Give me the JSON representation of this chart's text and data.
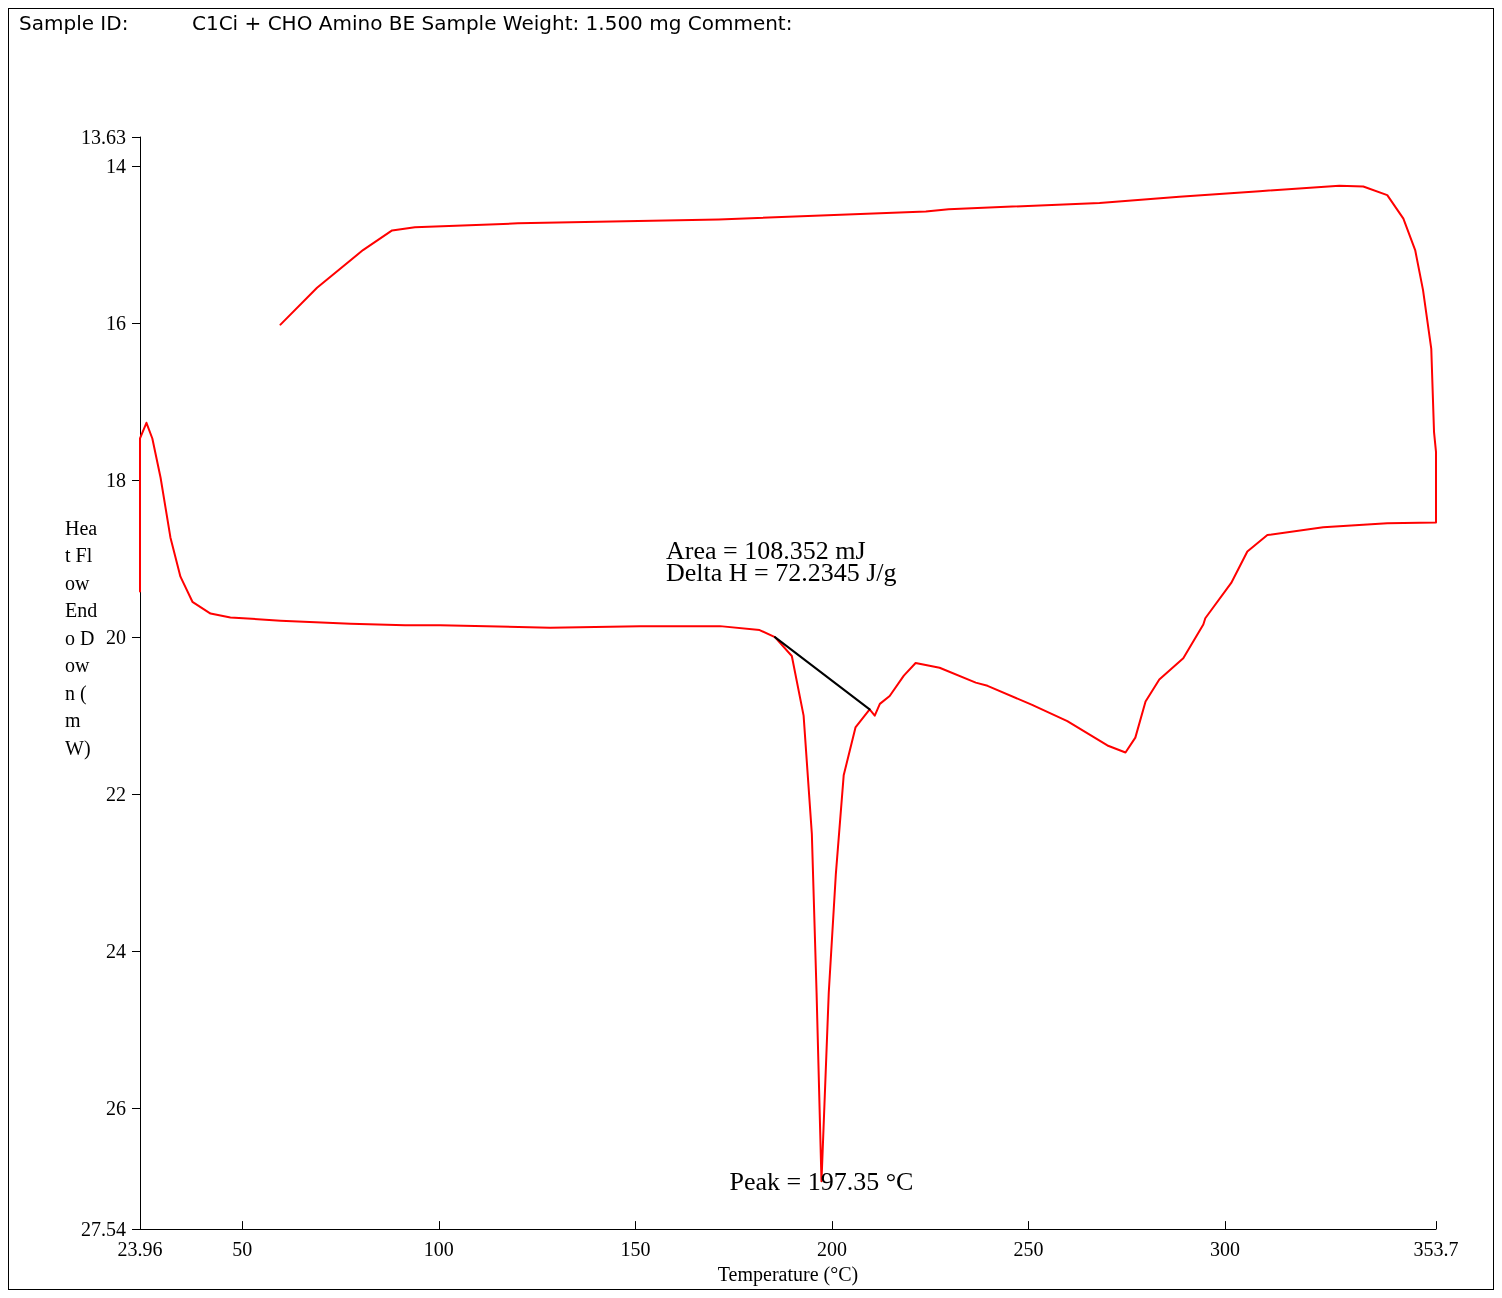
{
  "chart_data": {
    "type": "line",
    "title": "Sample ID:          C1Ci + CHO Amino BE Sample Weight: 1.500 mg Comment:",
    "xlabel": "Temperature (°C)",
    "ylabel": "Heat Flow Endo Down (mW)",
    "xlim": [
      23.96,
      353.7
    ],
    "xticks": [
      23.96,
      50,
      100,
      150,
      200,
      250,
      300,
      353.7
    ],
    "ylim": [
      27.54,
      13.63
    ],
    "yticks": [
      13.63,
      14,
      16,
      18,
      20,
      22,
      24,
      26,
      27.54
    ],
    "grid": false,
    "marker": "none",
    "line_style": "solid",
    "annotations": [
      "Area = 108.352 mJ",
      "Delta H = 72.2345 J/g",
      {
        "text": "Peak = 197.35 °C",
        "x": 197.35,
        "y": 26.93
      }
    ],
    "series": [
      {
        "color": "#ff0000",
        "x": [
          23.96,
          23.96,
          25.6,
          27.1,
          29.2,
          31.7,
          34.25,
          37.3,
          41.9,
          46.96,
          59.7,
          77.5,
          91.4,
          100.3,
          128.3,
          151.2,
          171.5,
          181.6,
          185.5,
          189.8,
          192.8,
          194.9,
          196.1,
          197.35,
          199.2,
          201.0,
          203.0,
          206.0,
          209.6,
          210.9,
          212.2,
          214.7,
          218.3,
          221.3,
          227.4,
          236.6,
          239.6,
          250.8,
          259.9,
          270.1,
          274.7,
          277.2,
          279.8,
          283.3,
          289.4,
          294.5,
          295.0,
          301.6,
          305.7,
          310.8,
          325.0,
          341.3,
          353.7,
          353.7,
          353.2,
          352.5,
          350.4,
          348.4,
          345.4,
          341.3,
          335.2,
          329.1,
          308.8,
          288.4,
          268.1,
          229.7,
          223.9,
          171.2,
          120.1,
          93.9,
          88.1,
          80.7,
          69.0,
          59.7
        ],
        "values": [
          19.42,
          17.47,
          17.27,
          17.47,
          17.97,
          18.73,
          19.23,
          19.55,
          19.7,
          19.75,
          19.79,
          19.83,
          19.85,
          19.85,
          19.88,
          19.86,
          19.86,
          19.91,
          20.0,
          20.24,
          21.0,
          22.51,
          24.53,
          26.93,
          24.53,
          23.02,
          21.76,
          21.15,
          20.92,
          21.0,
          20.85,
          20.75,
          20.49,
          20.33,
          20.39,
          20.58,
          20.62,
          20.86,
          21.07,
          21.38,
          21.47,
          21.28,
          20.82,
          20.54,
          20.27,
          19.84,
          19.76,
          19.31,
          18.91,
          18.7,
          18.6,
          18.55,
          18.54,
          17.64,
          17.39,
          16.33,
          15.58,
          15.07,
          14.67,
          14.37,
          14.26,
          14.25,
          14.32,
          14.39,
          14.47,
          14.55,
          14.58,
          14.68,
          14.73,
          14.78,
          14.82,
          15.07,
          15.55,
          16.02
        ]
      },
      {
        "type": "line",
        "color": "#000000",
        "x": [
          185.5,
          209.6
        ],
        "values": [
          20.0,
          20.92
        ]
      }
    ]
  }
}
